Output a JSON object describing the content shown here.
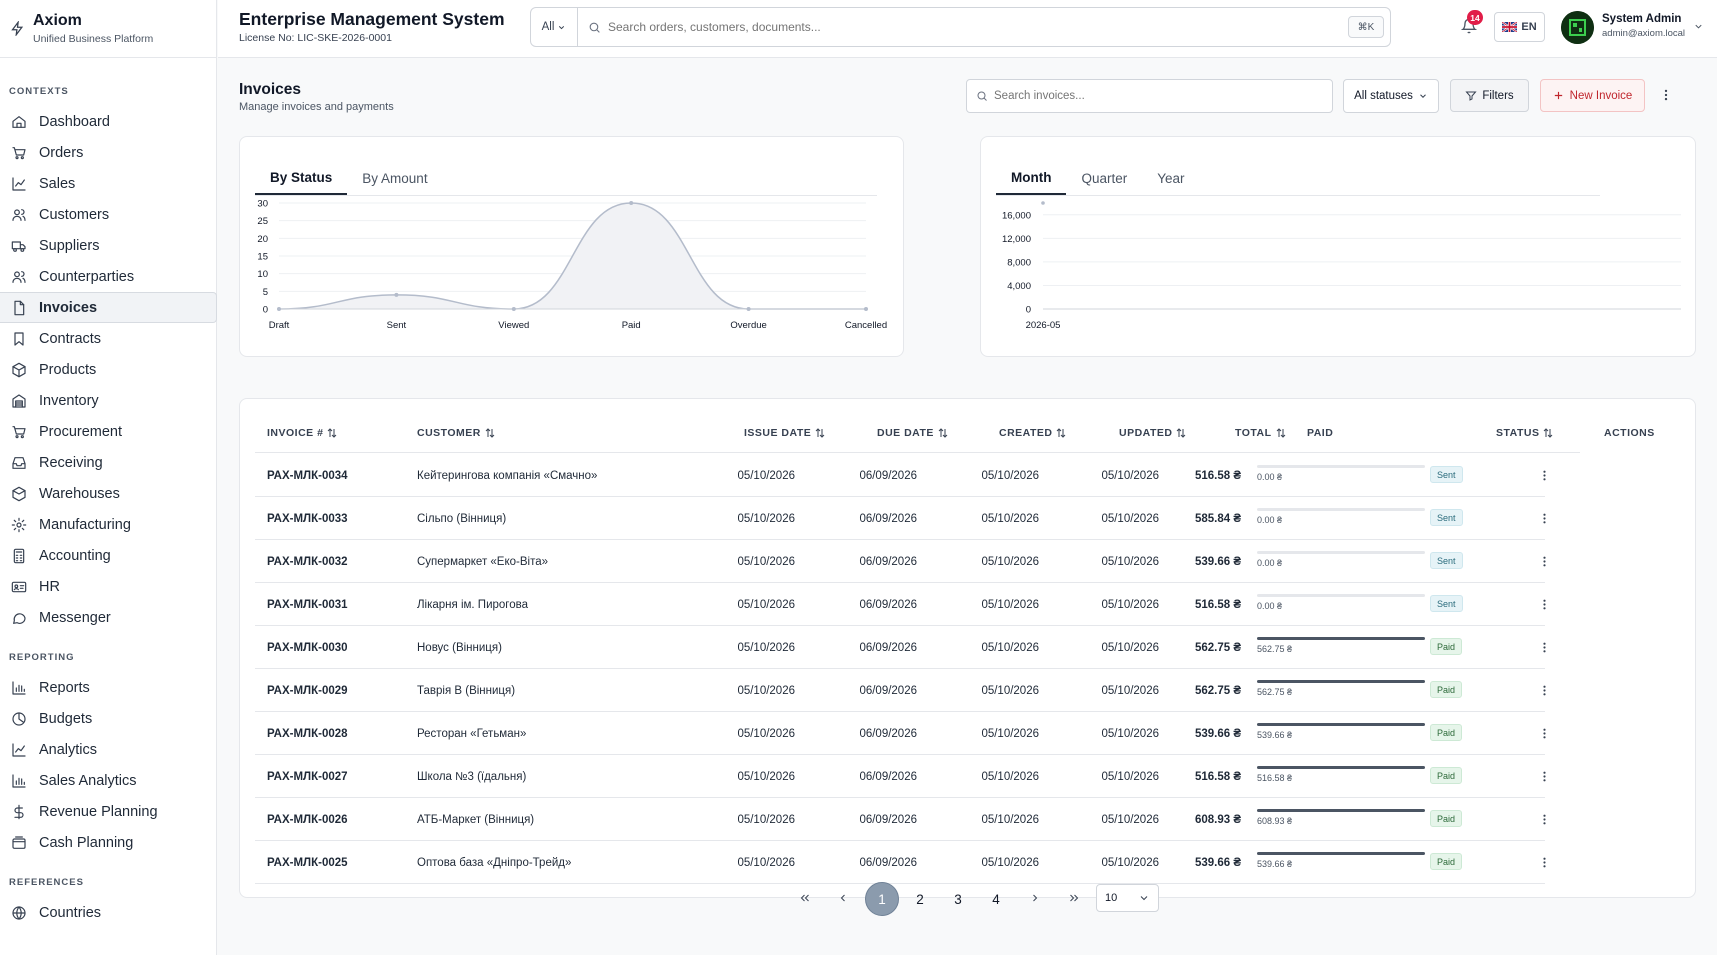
{
  "brand": {
    "name": "Axiom",
    "subtitle": "Unified Business Platform"
  },
  "sidebar": {
    "contexts_label": "CONTEXTS",
    "contexts": [
      {
        "label": "Dashboard",
        "icon": "home-icon"
      },
      {
        "label": "Orders",
        "icon": "cart-icon"
      },
      {
        "label": "Sales",
        "icon": "trend-icon"
      },
      {
        "label": "Customers",
        "icon": "users-icon"
      },
      {
        "label": "Suppliers",
        "icon": "truck-icon"
      },
      {
        "label": "Counterparties",
        "icon": "users-icon"
      },
      {
        "label": "Invoices",
        "icon": "file-icon",
        "active": true
      },
      {
        "label": "Contracts",
        "icon": "bookmark-icon"
      },
      {
        "label": "Products",
        "icon": "package-icon"
      },
      {
        "label": "Inventory",
        "icon": "warehouse-icon"
      },
      {
        "label": "Procurement",
        "icon": "cart-icon"
      },
      {
        "label": "Receiving",
        "icon": "inbox-icon"
      },
      {
        "label": "Warehouses",
        "icon": "box-icon"
      },
      {
        "label": "Manufacturing",
        "icon": "gear-icon"
      },
      {
        "label": "Accounting",
        "icon": "calculator-icon"
      },
      {
        "label": "HR",
        "icon": "id-card-icon"
      },
      {
        "label": "Messenger",
        "icon": "message-icon"
      }
    ],
    "reporting_label": "REPORTING",
    "reporting": [
      {
        "label": "Reports",
        "icon": "bar-chart-icon"
      },
      {
        "label": "Budgets",
        "icon": "pie-icon"
      },
      {
        "label": "Analytics",
        "icon": "trend-icon"
      },
      {
        "label": "Sales Analytics",
        "icon": "bar-chart-icon"
      },
      {
        "label": "Revenue Planning",
        "icon": "dollar-icon"
      },
      {
        "label": "Cash Planning",
        "icon": "wallet-icon"
      }
    ],
    "references_label": "REFERENCES",
    "references": [
      {
        "label": "Countries",
        "icon": "globe-icon"
      }
    ]
  },
  "header": {
    "title": "Enterprise Management System",
    "license": "License No: LIC-SKE-2026-0001",
    "search_scope": "All",
    "search_placeholder": "Search orders, customers, documents...",
    "shortcut": "⌘K",
    "notifications": "14",
    "language": "EN",
    "user_name": "System Admin",
    "user_email": "admin@axiom.local"
  },
  "page": {
    "title": "Invoices",
    "subtitle": "Manage invoices and payments",
    "search_placeholder": "Search invoices...",
    "status_filter": "All statuses",
    "filters_label": "Filters",
    "new_label": "New Invoice"
  },
  "chart_tabs_left": [
    "By Status",
    "By Amount"
  ],
  "chart_tabs_right": [
    "Month",
    "Quarter",
    "Year"
  ],
  "chart_data": [
    {
      "type": "area",
      "categories": [
        "Draft",
        "Sent",
        "Viewed",
        "Paid",
        "Overdue",
        "Cancelled"
      ],
      "values": [
        0,
        4,
        0,
        30,
        0,
        0
      ],
      "yticks": [
        0,
        5,
        10,
        15,
        20,
        25,
        30
      ],
      "ylim": [
        0,
        30
      ]
    },
    {
      "type": "line",
      "categories": [
        "2026-05"
      ],
      "values": [
        18000
      ],
      "yticks": [
        "0",
        "4,000",
        "8,000",
        "12,000",
        "16,000"
      ],
      "ylim": [
        0,
        18000
      ]
    }
  ],
  "table": {
    "columns": [
      "INVOICE #",
      "CUSTOMER",
      "ISSUE DATE",
      "DUE DATE",
      "CREATED",
      "UPDATED",
      "TOTAL",
      "PAID",
      "STATUS",
      "ACTIONS"
    ],
    "rows": [
      {
        "id": "РАХ-МЛК-0034",
        "customer": "Кейтерингова компанія «Смачно»",
        "issue": "05/10/2026",
        "due": "06/09/2026",
        "created": "05/10/2026",
        "updated": "05/10/2026",
        "total": "516.58 ₴",
        "paid": "0.00 ₴",
        "paid_fraction": 0,
        "status": "Sent"
      },
      {
        "id": "РАХ-МЛК-0033",
        "customer": "Сільпо (Вінниця)",
        "issue": "05/10/2026",
        "due": "06/09/2026",
        "created": "05/10/2026",
        "updated": "05/10/2026",
        "total": "585.84 ₴",
        "paid": "0.00 ₴",
        "paid_fraction": 0,
        "status": "Sent"
      },
      {
        "id": "РАХ-МЛК-0032",
        "customer": "Супермаркет «Еко-Віта»",
        "issue": "05/10/2026",
        "due": "06/09/2026",
        "created": "05/10/2026",
        "updated": "05/10/2026",
        "total": "539.66 ₴",
        "paid": "0.00 ₴",
        "paid_fraction": 0,
        "status": "Sent"
      },
      {
        "id": "РАХ-МЛК-0031",
        "customer": "Лікарня ім. Пирогова",
        "issue": "05/10/2026",
        "due": "06/09/2026",
        "created": "05/10/2026",
        "updated": "05/10/2026",
        "total": "516.58 ₴",
        "paid": "0.00 ₴",
        "paid_fraction": 0,
        "status": "Sent"
      },
      {
        "id": "РАХ-МЛК-0030",
        "customer": "Новус (Вінниця)",
        "issue": "05/10/2026",
        "due": "06/09/2026",
        "created": "05/10/2026",
        "updated": "05/10/2026",
        "total": "562.75 ₴",
        "paid": "562.75 ₴",
        "paid_fraction": 1,
        "status": "Paid"
      },
      {
        "id": "РАХ-МЛК-0029",
        "customer": "Таврія В (Вінниця)",
        "issue": "05/10/2026",
        "due": "06/09/2026",
        "created": "05/10/2026",
        "updated": "05/10/2026",
        "total": "562.75 ₴",
        "paid": "562.75 ₴",
        "paid_fraction": 1,
        "status": "Paid"
      },
      {
        "id": "РАХ-МЛК-0028",
        "customer": "Ресторан «Гетьман»",
        "issue": "05/10/2026",
        "due": "06/09/2026",
        "created": "05/10/2026",
        "updated": "05/10/2026",
        "total": "539.66 ₴",
        "paid": "539.66 ₴",
        "paid_fraction": 1,
        "status": "Paid"
      },
      {
        "id": "РАХ-МЛК-0027",
        "customer": "Школа №3 (їдальня)",
        "issue": "05/10/2026",
        "due": "06/09/2026",
        "created": "05/10/2026",
        "updated": "05/10/2026",
        "total": "516.58 ₴",
        "paid": "516.58 ₴",
        "paid_fraction": 1,
        "status": "Paid"
      },
      {
        "id": "РАХ-МЛК-0026",
        "customer": "АТБ-Маркет (Вінниця)",
        "issue": "05/10/2026",
        "due": "06/09/2026",
        "created": "05/10/2026",
        "updated": "05/10/2026",
        "total": "608.93 ₴",
        "paid": "608.93 ₴",
        "paid_fraction": 1,
        "status": "Paid"
      },
      {
        "id": "РАХ-МЛК-0025",
        "customer": "Оптова база «Дніпро-Трейд»",
        "issue": "05/10/2026",
        "due": "06/09/2026",
        "created": "05/10/2026",
        "updated": "05/10/2026",
        "total": "539.66 ₴",
        "paid": "539.66 ₴",
        "paid_fraction": 1,
        "status": "Paid"
      }
    ]
  },
  "pagination": {
    "pages": [
      "1",
      "2",
      "3",
      "4"
    ],
    "current": "1",
    "page_size": "10"
  }
}
